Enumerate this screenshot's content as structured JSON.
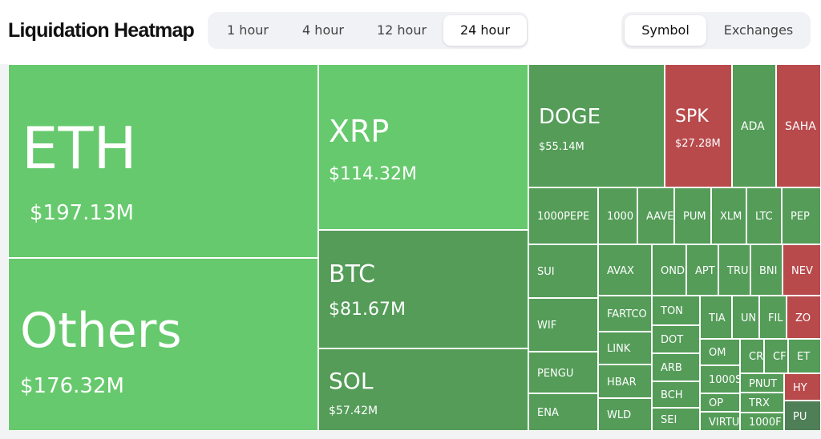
{
  "header": {
    "title": "Liquidation Heatmap"
  },
  "timeframes": {
    "options": [
      "1 hour",
      "4 hour",
      "12 hour",
      "24 hour"
    ],
    "selected": "24 hour"
  },
  "view_mode": {
    "options": [
      "Symbol",
      "Exchanges"
    ],
    "selected": "Symbol"
  },
  "colors": {
    "green_bright": "#66c96d",
    "green_dark": "#549c58",
    "red": "#b84a4c",
    "dark_green": "#4f7f57"
  },
  "tiles": [
    {
      "symbol": "ETH",
      "value": "$197.13M",
      "color": "green_bright"
    },
    {
      "symbol": "Others",
      "value": "$176.32M",
      "color": "green_bright"
    },
    {
      "symbol": "XRP",
      "value": "$114.32M",
      "color": "green_bright"
    },
    {
      "symbol": "BTC",
      "value": "$81.67M",
      "color": "green_dark"
    },
    {
      "symbol": "SOL",
      "value": "$57.42M",
      "color": "green_dark"
    },
    {
      "symbol": "DOGE",
      "value": "$55.14M",
      "color": "green_dark"
    },
    {
      "symbol": "SPK",
      "value": "$27.28M",
      "color": "red"
    },
    {
      "symbol": "ADA",
      "color": "green_dark"
    },
    {
      "symbol": "SAHA",
      "color": "red"
    },
    {
      "symbol": "1000PEPE",
      "color": "green_dark"
    },
    {
      "symbol": "1000",
      "color": "green_dark"
    },
    {
      "symbol": "AAVE",
      "color": "green_dark"
    },
    {
      "symbol": "PUM",
      "color": "green_dark"
    },
    {
      "symbol": "XLM",
      "color": "green_dark"
    },
    {
      "symbol": "LTC",
      "color": "green_dark"
    },
    {
      "symbol": "PEP",
      "color": "green_dark"
    },
    {
      "symbol": "SUI",
      "color": "green_dark"
    },
    {
      "symbol": "AVAX",
      "color": "green_dark"
    },
    {
      "symbol": "OND",
      "color": "green_dark"
    },
    {
      "symbol": "APT",
      "color": "green_dark"
    },
    {
      "symbol": "TRU",
      "color": "green_dark"
    },
    {
      "symbol": "BNI",
      "color": "green_dark"
    },
    {
      "symbol": "NEV",
      "color": "red"
    },
    {
      "symbol": "WIF",
      "color": "green_dark"
    },
    {
      "symbol": "FARTCO",
      "color": "green_dark"
    },
    {
      "symbol": "TON",
      "color": "green_dark"
    },
    {
      "symbol": "TIA",
      "color": "green_dark"
    },
    {
      "symbol": "UN",
      "color": "green_dark"
    },
    {
      "symbol": "FIL",
      "color": "green_dark"
    },
    {
      "symbol": "ZO",
      "color": "red"
    },
    {
      "symbol": "LINK",
      "color": "green_dark"
    },
    {
      "symbol": "DOT",
      "color": "green_dark"
    },
    {
      "symbol": "OM",
      "color": "green_dark"
    },
    {
      "symbol": "CR",
      "color": "green_dark"
    },
    {
      "symbol": "CF",
      "color": "green_dark"
    },
    {
      "symbol": "ET",
      "color": "green_dark"
    },
    {
      "symbol": "PENGU",
      "color": "green_dark"
    },
    {
      "symbol": "ARB",
      "color": "green_dark"
    },
    {
      "symbol": "1000S",
      "color": "green_dark"
    },
    {
      "symbol": "HBAR",
      "color": "green_dark"
    },
    {
      "symbol": "PNUT",
      "color": "green_dark"
    },
    {
      "symbol": "HY",
      "color": "red"
    },
    {
      "symbol": "BCH",
      "color": "green_dark"
    },
    {
      "symbol": "OP",
      "color": "green_dark"
    },
    {
      "symbol": "TRX",
      "color": "green_dark"
    },
    {
      "symbol": "ENA",
      "color": "green_dark"
    },
    {
      "symbol": "WLD",
      "color": "green_dark"
    },
    {
      "symbol": "SEI",
      "color": "green_dark"
    },
    {
      "symbol": "VIRTU",
      "color": "green_dark"
    },
    {
      "symbol": "1000F",
      "color": "green_dark"
    },
    {
      "symbol": "PU",
      "color": "dark_green"
    }
  ]
}
